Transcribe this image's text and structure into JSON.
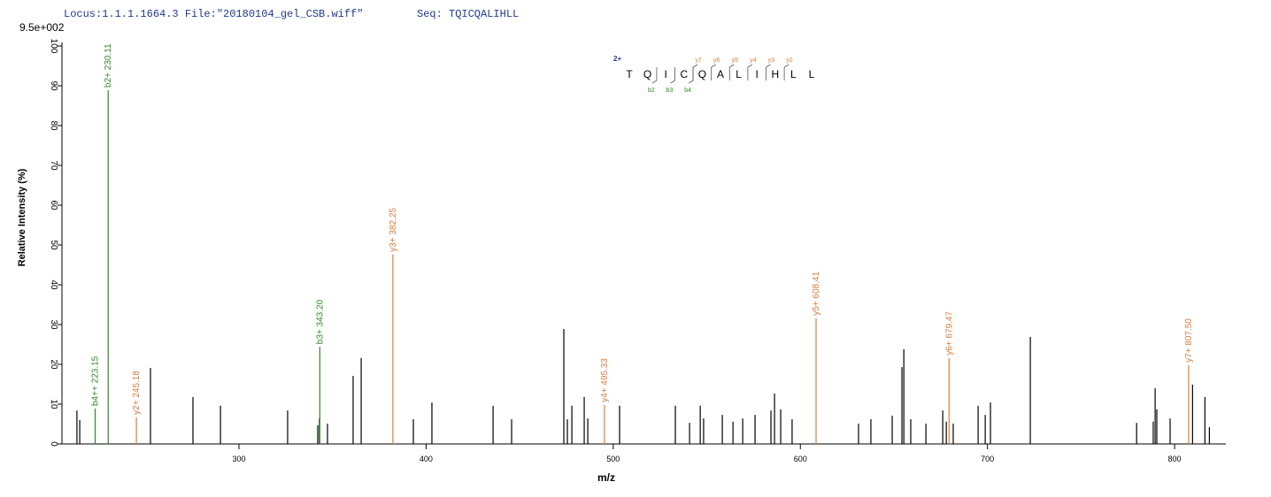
{
  "chart_data": {
    "type": "spectrum",
    "header_locus": "Locus:1.1.1.1664.3 File:\"20180104_gel_CSB.wiff\"",
    "header_seq": "Seq: TQICQALIHLL",
    "max_intensity": "9.5e+002",
    "y_label": "Relative  Intensity (%)",
    "x_label": "m/z",
    "xlim": [
      205.4,
      827.4
    ],
    "ylim": [
      0,
      100
    ],
    "xticks": [
      300,
      400,
      500,
      600,
      700,
      800
    ],
    "yticks": [
      0,
      10,
      20,
      30,
      40,
      50,
      60,
      70,
      80,
      90,
      100
    ],
    "peak_color": "#000000",
    "peaks": {
      "x": [
        213.4,
        214.9,
        252.7,
        275.4,
        290.1,
        326.0,
        342.1,
        343.0,
        347.3,
        361.0,
        365.3,
        393.2,
        403.1,
        435.8,
        445.7,
        473.6,
        475.5,
        477.9,
        484.5,
        486.4,
        503.4,
        533.2,
        540.8,
        546.5,
        548.3,
        558.3,
        564.0,
        569.2,
        575.8,
        584.3,
        586.2,
        589.5,
        595.6,
        631.1,
        637.7,
        649.1,
        654.3,
        655.3,
        659.0,
        667.1,
        676.1,
        678.0,
        681.7,
        695.0,
        698.8,
        701.6,
        722.9,
        779.7,
        788.6,
        789.6,
        790.5,
        797.6,
        809.6,
        816.2,
        818.6
      ],
      "values": [
        8.4,
        6.0,
        19.1,
        11.8,
        9.6,
        8.4,
        4.7,
        6.4,
        5.1,
        17.1,
        21.6,
        6.2,
        10.4,
        9.6,
        6.2,
        28.9,
        6.2,
        9.6,
        11.8,
        6.4,
        9.6,
        9.6,
        5.3,
        9.6,
        6.4,
        7.3,
        5.6,
        6.4,
        7.3,
        8.4,
        12.7,
        8.7,
        6.2,
        5.1,
        6.2,
        7.1,
        19.3,
        23.8,
        6.2,
        5.1,
        8.4,
        5.6,
        5.1,
        9.6,
        7.3,
        10.4,
        26.9,
        5.3,
        5.6,
        14.0,
        8.7,
        6.4,
        14.9,
        11.8,
        4.2
      ]
    },
    "annotated_peaks": [
      {
        "label": "b4++ 223.15",
        "x": 223.15,
        "value": 8.9,
        "color": "#2e8b22"
      },
      {
        "label": "b2+ 230.11",
        "x": 230.11,
        "value": 88.9,
        "color": "#2e8b22"
      },
      {
        "label": "y2+ 245.18",
        "x": 245.18,
        "value": 6.7,
        "color": "#e07b3a"
      },
      {
        "label": "b3+ 343.20",
        "x": 343.2,
        "value": 24.4,
        "color": "#2e8b22"
      },
      {
        "label": "y3+ 382.25",
        "x": 382.25,
        "value": 47.6,
        "color": "#e07b3a"
      },
      {
        "label": "y4+ 495.33",
        "x": 495.33,
        "value": 9.8,
        "color": "#e07b3a"
      },
      {
        "label": "y5+ 608.41",
        "x": 608.41,
        "value": 31.6,
        "color": "#e07b3a"
      },
      {
        "label": "y6+ 679.47",
        "x": 679.47,
        "value": 21.6,
        "color": "#e07b3a"
      },
      {
        "label": "y7+ 807.50",
        "x": 807.5,
        "value": 19.8,
        "color": "#e07b3a"
      }
    ],
    "sequence_annotation": {
      "charge": "2+",
      "residues": [
        "T",
        "Q",
        "I",
        "C",
        "Q",
        "A",
        "L",
        "I",
        "H",
        "L",
        "L"
      ],
      "y_ions": [
        "y7",
        "y6",
        "y5",
        "y4",
        "y3",
        "y2"
      ],
      "b_ions": [
        "b2",
        "b3",
        "b4"
      ]
    }
  }
}
